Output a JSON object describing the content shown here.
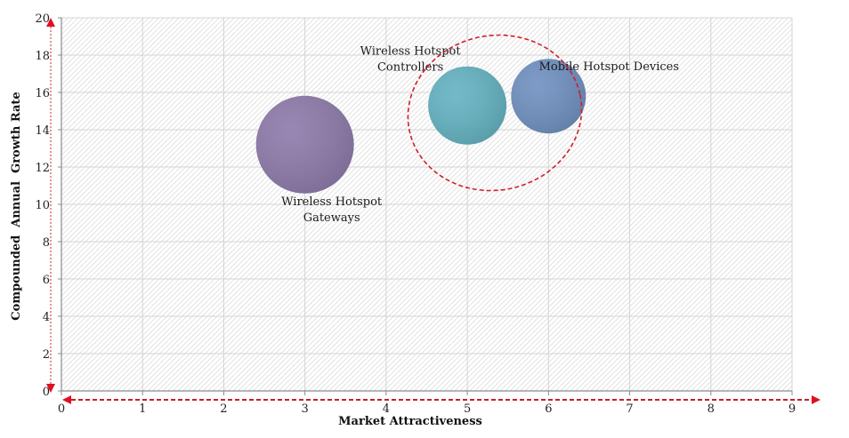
{
  "chart_data": {
    "type": "bubble",
    "title": "",
    "xlabel": "Market Attractiveness",
    "ylabel": "Compounded  Annual  Growth Rate",
    "xlim": [
      0,
      9
    ],
    "ylim": [
      0,
      20
    ],
    "x_ticks": [
      0,
      1,
      2,
      3,
      4,
      5,
      6,
      7,
      8,
      9
    ],
    "y_ticks": [
      0,
      2,
      4,
      6,
      8,
      10,
      12,
      14,
      16,
      18,
      20
    ],
    "grid": true,
    "legend": "none",
    "series": [
      {
        "name": "Wireless Hotspot Gateways",
        "label_lines": [
          "Wireless Hotspot",
          "Gateways"
        ],
        "x": 3.0,
        "y": 13.2,
        "size": 55,
        "color": "#8a76a8"
      },
      {
        "name": "Wireless Hotspot Controllers",
        "label_lines": [
          "Wireless Hotspot",
          "Controllers"
        ],
        "x": 5.0,
        "y": 15.3,
        "size": 44,
        "color": "#5fb0c0"
      },
      {
        "name": "Mobile Hotspot Devices",
        "label_lines": [
          "Mobile Hotspot  Devices"
        ],
        "x": 6.0,
        "y": 15.8,
        "size": 42,
        "color": "#6a8dbf"
      }
    ],
    "annotations": [
      {
        "type": "dashed-ellipse",
        "encloses": [
          "Wireless Hotspot Controllers",
          "Mobile Hotspot Devices"
        ],
        "color": "#d0202a"
      },
      {
        "type": "dashed-arrow",
        "axis": "x",
        "color": "#d0202a"
      },
      {
        "type": "dashed-arrow",
        "axis": "y",
        "color": "#d0202a"
      }
    ]
  }
}
